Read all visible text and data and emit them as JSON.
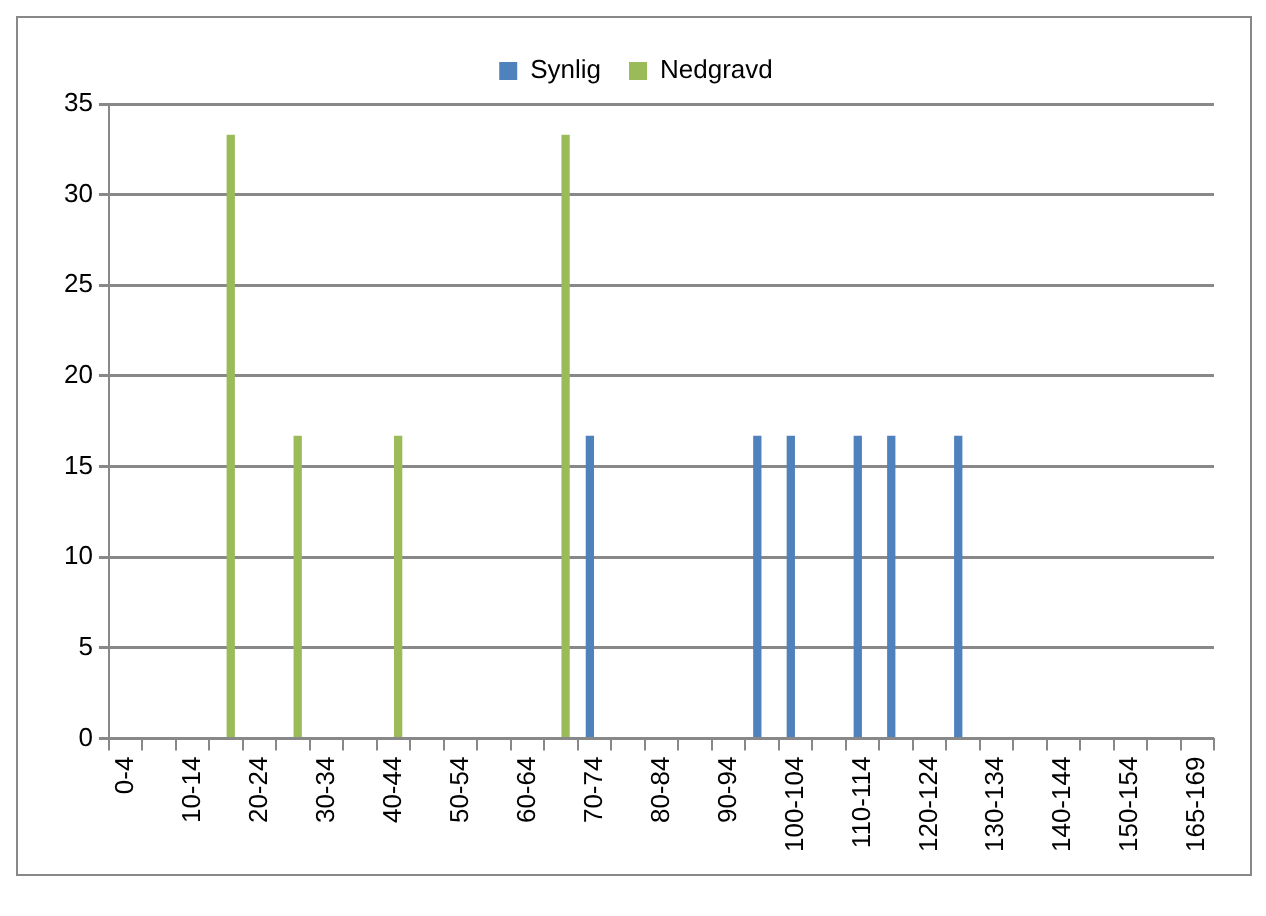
{
  "chart_data": {
    "type": "bar",
    "categories": [
      "0-4",
      null,
      "10-14",
      null,
      "20-24",
      null,
      "30-34",
      null,
      "40-44",
      null,
      "50-54",
      null,
      "60-64",
      null,
      "70-74",
      null,
      "80-84",
      null,
      "90-94",
      null,
      "100-104",
      null,
      "110-114",
      null,
      "120-124",
      null,
      "130-134",
      null,
      "140-144",
      null,
      "150-154",
      null,
      "165-169"
    ],
    "series": [
      {
        "name": "Synlig",
        "color": "#4f81bd",
        "values": [
          null,
          null,
          null,
          null,
          null,
          null,
          null,
          null,
          null,
          null,
          null,
          null,
          null,
          null,
          16.7,
          null,
          null,
          null,
          null,
          16.7,
          16.7,
          null,
          16.7,
          16.7,
          null,
          16.7,
          null,
          null,
          null,
          null,
          null,
          null,
          null
        ]
      },
      {
        "name": "Nedgravd",
        "color": "#9bbb59",
        "values": [
          null,
          null,
          null,
          33.3,
          null,
          16.7,
          null,
          null,
          16.7,
          null,
          null,
          null,
          null,
          33.3,
          null,
          null,
          null,
          null,
          null,
          null,
          null,
          null,
          null,
          null,
          null,
          null,
          null,
          null,
          null,
          null,
          null,
          null,
          null
        ]
      }
    ],
    "ylim": [
      0,
      35
    ],
    "yticks": [
      0,
      5,
      10,
      15,
      20,
      25,
      30,
      35
    ],
    "grid": "y",
    "legend": "top"
  }
}
